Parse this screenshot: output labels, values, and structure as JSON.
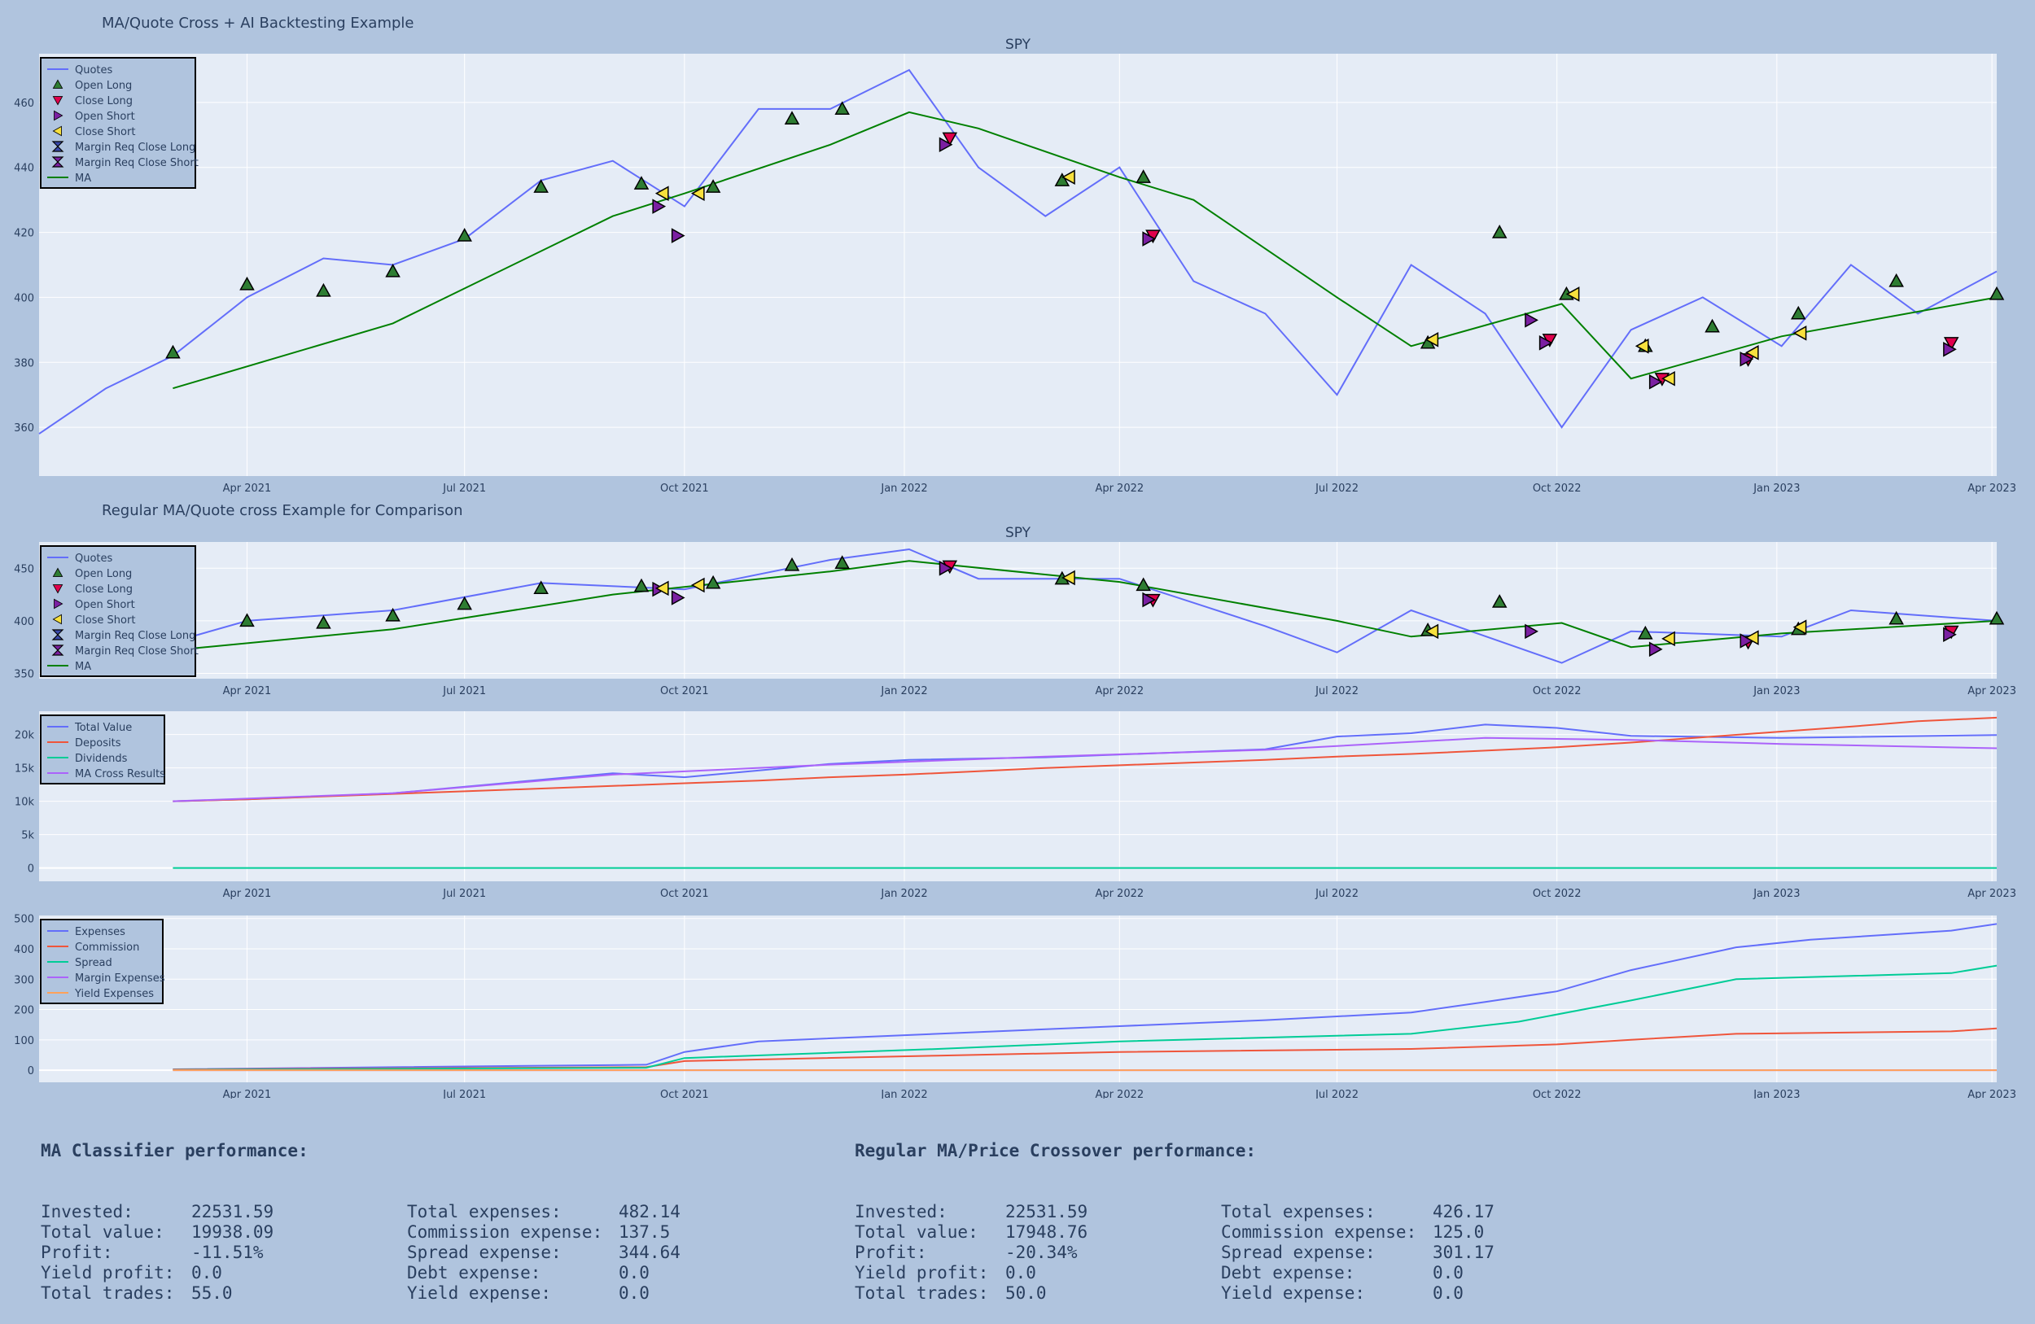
{
  "titles": {
    "main": "MA/Quote Cross + AI Backtesting Example",
    "second": "Regular MA/Quote cross Example for Comparison"
  },
  "colors": {
    "quotes": "#636efa",
    "ma": "#008000",
    "deposits": "#ef553b",
    "dividends": "#00cc96",
    "ma_cross": "#ab63fa",
    "yield": "#ffa15a",
    "open_long": "#2e7d32",
    "close_long": "#e0004d",
    "open_short": "#7b1fa2",
    "close_short": "#f7e03d"
  },
  "x_dates": [
    "Apr 2021",
    "Jul 2021",
    "Oct 2021",
    "Jan 2022",
    "Apr 2022",
    "Jul 2022",
    "Oct 2022",
    "Jan 2023",
    "Apr 2023"
  ],
  "chart_data": [
    {
      "type": "line",
      "subtitle": "SPY",
      "x_range": [
        "2021-01-04",
        "2023-04-03"
      ],
      "ylim": [
        345,
        475
      ],
      "y_ticks": [
        360,
        380,
        400,
        420,
        440,
        460
      ],
      "legend": [
        "Quotes",
        "Open Long",
        "Close Long",
        "Open Short",
        "Close Short",
        "Margin Req Close Long",
        "Margin Req Close Short",
        "MA"
      ],
      "legend_position": "top-left",
      "series": [
        {
          "name": "Quotes",
          "x": [
            "2021-01-04",
            "2021-02-01",
            "2021-03-01",
            "2021-04-01",
            "2021-05-03",
            "2021-06-01",
            "2021-07-01",
            "2021-08-02",
            "2021-09-01",
            "2021-10-01",
            "2021-11-01",
            "2021-12-01",
            "2022-01-03",
            "2022-02-01",
            "2022-03-01",
            "2022-04-01",
            "2022-05-02",
            "2022-06-01",
            "2022-07-01",
            "2022-08-01",
            "2022-09-01",
            "2022-10-03",
            "2022-11-01",
            "2022-12-01",
            "2023-01-03",
            "2023-02-01",
            "2023-03-01",
            "2023-04-03"
          ],
          "values": [
            358,
            372,
            382,
            400,
            412,
            410,
            418,
            436,
            442,
            428,
            458,
            458,
            470,
            440,
            425,
            440,
            405,
            395,
            370,
            410,
            395,
            360,
            390,
            400,
            385,
            410,
            395,
            408
          ]
        },
        {
          "name": "MA",
          "x": [
            "2021-03-01",
            "2021-06-01",
            "2021-09-01",
            "2021-10-01",
            "2021-12-01",
            "2022-01-03",
            "2022-02-01",
            "2022-04-01",
            "2022-05-02",
            "2022-07-01",
            "2022-08-01",
            "2022-10-03",
            "2022-11-01",
            "2023-01-03",
            "2023-04-03"
          ],
          "values": [
            372,
            392,
            425,
            432,
            447,
            457,
            452,
            437,
            430,
            400,
            385,
            398,
            375,
            388,
            400
          ]
        }
      ],
      "markers": {
        "Open Long": [
          [
            "2021-03-01",
            383
          ],
          [
            "2021-04-01",
            404
          ],
          [
            "2021-05-03",
            402
          ],
          [
            "2021-06-01",
            408
          ],
          [
            "2021-07-01",
            419
          ],
          [
            "2021-08-02",
            434
          ],
          [
            "2021-09-13",
            435
          ],
          [
            "2021-10-13",
            434
          ],
          [
            "2021-11-15",
            455
          ],
          [
            "2021-12-06",
            458
          ],
          [
            "2022-03-08",
            436
          ],
          [
            "2022-04-11",
            437
          ],
          [
            "2022-08-08",
            386
          ],
          [
            "2022-09-07",
            420
          ],
          [
            "2022-10-05",
            401
          ],
          [
            "2022-11-07",
            385
          ],
          [
            "2022-12-05",
            391
          ],
          [
            "2023-01-10",
            395
          ],
          [
            "2023-02-20",
            405
          ],
          [
            "2023-04-03",
            401
          ]
        ],
        "Close Long": [
          [
            "2022-01-20",
            449
          ],
          [
            "2022-04-15",
            419
          ],
          [
            "2022-09-28",
            387
          ],
          [
            "2022-11-14",
            375
          ],
          [
            "2022-12-20",
            381
          ],
          [
            "2023-03-15",
            386
          ]
        ],
        "Open Short": [
          [
            "2021-09-20",
            428
          ],
          [
            "2021-09-28",
            419
          ],
          [
            "2022-01-18",
            447
          ],
          [
            "2022-04-13",
            418
          ],
          [
            "2022-09-20",
            393
          ],
          [
            "2022-09-26",
            386
          ],
          [
            "2022-11-11",
            374
          ],
          [
            "2022-12-19",
            381
          ],
          [
            "2023-03-14",
            384
          ]
        ],
        "Close Short": [
          [
            "2021-09-22",
            432
          ],
          [
            "2021-10-07",
            432
          ],
          [
            "2022-03-11",
            437
          ],
          [
            "2022-08-10",
            387
          ],
          [
            "2022-10-08",
            401
          ],
          [
            "2022-11-06",
            385
          ],
          [
            "2022-11-17",
            375
          ],
          [
            "2022-12-22",
            383
          ],
          [
            "2023-01-11",
            389
          ]
        ]
      }
    },
    {
      "type": "line",
      "subtitle": "SPY",
      "x_range": [
        "2021-01-04",
        "2023-04-03"
      ],
      "ylim": [
        345,
        475
      ],
      "y_ticks": [
        350,
        400,
        450
      ],
      "legend": [
        "Quotes",
        "Open Long",
        "Close Long",
        "Open Short",
        "Close Short",
        "Margin Req Close Long",
        "Margin Req Close Short",
        "MA"
      ],
      "legend_position": "top-left",
      "series": [
        {
          "name": "Quotes",
          "x": [
            "2021-03-01",
            "2021-04-01",
            "2021-06-01",
            "2021-08-02",
            "2021-10-01",
            "2021-12-01",
            "2022-01-03",
            "2022-02-01",
            "2022-04-01",
            "2022-06-01",
            "2022-07-01",
            "2022-08-01",
            "2022-10-03",
            "2022-11-01",
            "2023-01-03",
            "2023-02-01",
            "2023-04-03"
          ],
          "values": [
            380,
            400,
            410,
            436,
            430,
            458,
            468,
            440,
            440,
            395,
            370,
            410,
            360,
            390,
            385,
            410,
            400
          ]
        },
        {
          "name": "MA",
          "x": [
            "2021-03-01",
            "2021-06-01",
            "2021-09-01",
            "2021-12-01",
            "2022-01-03",
            "2022-04-01",
            "2022-07-01",
            "2022-08-01",
            "2022-10-03",
            "2022-11-01",
            "2023-01-03",
            "2023-04-03"
          ],
          "values": [
            372,
            392,
            425,
            447,
            457,
            437,
            400,
            385,
            398,
            375,
            388,
            400
          ]
        }
      ],
      "markers": {
        "Open Long": [
          [
            "2021-03-01",
            381
          ],
          [
            "2021-04-01",
            400
          ],
          [
            "2021-05-03",
            398
          ],
          [
            "2021-06-01",
            405
          ],
          [
            "2021-07-01",
            416
          ],
          [
            "2021-08-02",
            431
          ],
          [
            "2021-09-13",
            433
          ],
          [
            "2021-10-13",
            436
          ],
          [
            "2021-11-15",
            453
          ],
          [
            "2021-12-06",
            455
          ],
          [
            "2022-03-08",
            440
          ],
          [
            "2022-04-11",
            434
          ],
          [
            "2022-08-08",
            391
          ],
          [
            "2022-09-07",
            418
          ],
          [
            "2022-11-07",
            388
          ],
          [
            "2023-01-10",
            392
          ],
          [
            "2023-02-20",
            402
          ],
          [
            "2023-04-03",
            402
          ]
        ],
        "Close Long": [
          [
            "2022-01-20",
            452
          ],
          [
            "2022-04-15",
            420
          ],
          [
            "2022-12-20",
            380
          ],
          [
            "2023-03-15",
            390
          ]
        ],
        "Open Short": [
          [
            "2021-09-20",
            430
          ],
          [
            "2021-09-28",
            422
          ],
          [
            "2022-01-18",
            450
          ],
          [
            "2022-04-13",
            420
          ],
          [
            "2022-09-20",
            390
          ],
          [
            "2022-11-11",
            373
          ],
          [
            "2022-12-19",
            381
          ],
          [
            "2023-03-14",
            387
          ]
        ],
        "Close Short": [
          [
            "2021-09-22",
            431
          ],
          [
            "2021-10-07",
            434
          ],
          [
            "2022-03-11",
            441
          ],
          [
            "2022-08-10",
            390
          ],
          [
            "2022-11-17",
            383
          ],
          [
            "2022-12-22",
            384
          ],
          [
            "2023-01-11",
            394
          ]
        ]
      }
    },
    {
      "type": "line",
      "x_range": [
        "2021-01-04",
        "2023-04-03"
      ],
      "ylim": [
        -2000,
        23500
      ],
      "y_ticks": [
        0,
        5000,
        10000,
        15000,
        20000
      ],
      "y_tick_labels": [
        "0",
        "5k",
        "10k",
        "15k",
        "20k"
      ],
      "legend": [
        "Total Value",
        "Deposits",
        "Dividends",
        "MA Cross Results"
      ],
      "legend_position": "top-left",
      "series": [
        {
          "name": "Total Value",
          "x": [
            "2021-03-01",
            "2021-04-01",
            "2021-06-01",
            "2021-09-01",
            "2021-10-01",
            "2021-12-01",
            "2022-01-03",
            "2022-03-01",
            "2022-06-01",
            "2022-07-01",
            "2022-08-01",
            "2022-09-01",
            "2022-10-01",
            "2022-11-01",
            "2023-01-03",
            "2023-04-03"
          ],
          "values": [
            10000,
            10300,
            11200,
            14200,
            13600,
            15600,
            16200,
            16600,
            17800,
            19700,
            20200,
            21500,
            21000,
            19800,
            19500,
            19938
          ]
        },
        {
          "name": "Deposits",
          "x": [
            "2021-03-01",
            "2021-04-01",
            "2021-05-01",
            "2021-06-01",
            "2021-07-01",
            "2021-08-01",
            "2021-09-01",
            "2021-10-01",
            "2021-11-01",
            "2021-12-01",
            "2022-01-01",
            "2022-02-01",
            "2022-03-01",
            "2022-04-01",
            "2022-05-01",
            "2022-06-01",
            "2022-07-01",
            "2022-08-01",
            "2022-09-01",
            "2022-10-01",
            "2022-11-01",
            "2022-12-01",
            "2023-01-01",
            "2023-02-01",
            "2023-03-01",
            "2023-04-03"
          ],
          "values": [
            10000,
            10300,
            10700,
            11100,
            11500,
            11900,
            12300,
            12700,
            13100,
            13600,
            14000,
            14500,
            15000,
            15400,
            15800,
            16200,
            16700,
            17100,
            17600,
            18100,
            18800,
            19600,
            20400,
            21200,
            22000,
            22531
          ]
        },
        {
          "name": "Dividends",
          "x": [
            "2021-03-01",
            "2023-04-03"
          ],
          "values": [
            0,
            0
          ]
        },
        {
          "name": "MA Cross Results",
          "x": [
            "2021-03-01",
            "2021-06-01",
            "2021-09-01",
            "2021-12-01",
            "2022-03-01",
            "2022-06-01",
            "2022-09-01",
            "2022-11-01",
            "2023-01-03",
            "2023-04-03"
          ],
          "values": [
            10000,
            11200,
            14000,
            15500,
            16700,
            17700,
            19500,
            19200,
            18600,
            17948
          ]
        }
      ]
    },
    {
      "type": "line",
      "x_range": [
        "2021-01-04",
        "2023-04-03"
      ],
      "ylim": [
        -40,
        510
      ],
      "y_ticks": [
        0,
        100,
        200,
        300,
        400,
        500
      ],
      "legend": [
        "Expenses",
        "Commission",
        "Spread",
        "Margin Expenses",
        "Yield Expenses"
      ],
      "legend_position": "top-left",
      "series": [
        {
          "name": "Expenses",
          "x": [
            "2021-03-01",
            "2021-09-15",
            "2021-10-01",
            "2021-11-01",
            "2022-01-15",
            "2022-04-01",
            "2022-06-01",
            "2022-08-01",
            "2022-09-01",
            "2022-10-01",
            "2022-11-01",
            "2022-12-15",
            "2023-01-15",
            "2023-03-15",
            "2023-04-03"
          ],
          "values": [
            3,
            18,
            60,
            95,
            120,
            145,
            165,
            190,
            225,
            260,
            330,
            405,
            430,
            460,
            482
          ]
        },
        {
          "name": "Commission",
          "x": [
            "2021-03-01",
            "2021-09-15",
            "2021-10-01",
            "2022-01-15",
            "2022-04-01",
            "2022-08-01",
            "2022-10-01",
            "2022-11-01",
            "2022-12-15",
            "2023-03-15",
            "2023-04-03"
          ],
          "values": [
            2.5,
            10,
            30,
            48,
            60,
            70,
            85,
            100,
            120,
            128,
            137.5
          ]
        },
        {
          "name": "Spread",
          "x": [
            "2021-03-01",
            "2021-09-15",
            "2021-10-01",
            "2022-01-15",
            "2022-04-01",
            "2022-08-01",
            "2022-09-15",
            "2022-11-01",
            "2022-12-15",
            "2023-03-15",
            "2023-04-03"
          ],
          "values": [
            1,
            8,
            40,
            70,
            95,
            120,
            160,
            230,
            300,
            320,
            344.64
          ]
        },
        {
          "name": "Margin Expenses",
          "x": [
            "2021-03-01",
            "2023-04-03"
          ],
          "values": [
            0,
            0
          ]
        },
        {
          "name": "Yield Expenses",
          "x": [
            "2021-03-01",
            "2023-04-03"
          ],
          "values": [
            0,
            0
          ]
        }
      ]
    }
  ],
  "perf_ai": {
    "heading": "MA Classifier performance:",
    "left": [
      [
        "Invested:",
        "22531.59"
      ],
      [
        "Total value:",
        "19938.09"
      ],
      [
        "Profit:",
        "-11.51%"
      ],
      [
        "Yield profit:",
        "0.0"
      ],
      [
        "Total trades:",
        "55.0"
      ]
    ],
    "right": [
      [
        "Total expenses:",
        "482.14"
      ],
      [
        "Commission expense:",
        "137.5"
      ],
      [
        "Spread expense:",
        "344.64"
      ],
      [
        "Debt expense:",
        "0.0"
      ],
      [
        "Yield expense:",
        "0.0"
      ]
    ]
  },
  "perf_regular": {
    "heading": "Regular MA/Price Crossover performance:",
    "left": [
      [
        "Invested:",
        "22531.59"
      ],
      [
        "Total value:",
        "17948.76"
      ],
      [
        "Profit:",
        "-20.34%"
      ],
      [
        "Yield profit:",
        "0.0"
      ],
      [
        "Total trades:",
        "50.0"
      ]
    ],
    "right": [
      [
        "Total expenses:",
        "426.17"
      ],
      [
        "Commission expense:",
        "125.0"
      ],
      [
        "Spread expense:",
        "301.17"
      ],
      [
        "Debt expense:",
        "0.0"
      ],
      [
        "Yield expense:",
        "0.0"
      ]
    ]
  }
}
